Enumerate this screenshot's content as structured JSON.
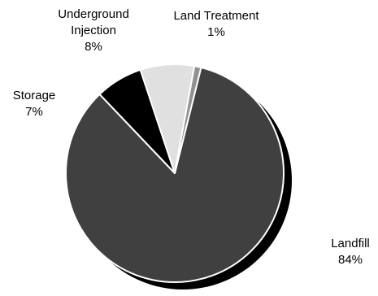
{
  "chart_data": {
    "type": "pie",
    "slices": [
      {
        "label_lines": [
          "Landfill"
        ],
        "value": 84,
        "value_label": "84%",
        "color": "#404040"
      },
      {
        "label_lines": [
          "Storage"
        ],
        "value": 7,
        "value_label": "7%",
        "color": "#000000"
      },
      {
        "label_lines": [
          "Underground",
          "Injection"
        ],
        "value": 8,
        "value_label": "8%",
        "color": "#e0e0e0"
      },
      {
        "label_lines": [
          "Land Treatment"
        ],
        "value": 1,
        "value_label": "1%",
        "color": "#909090"
      }
    ],
    "shadow_color": "#000000",
    "edge_color": "#ffffff"
  }
}
